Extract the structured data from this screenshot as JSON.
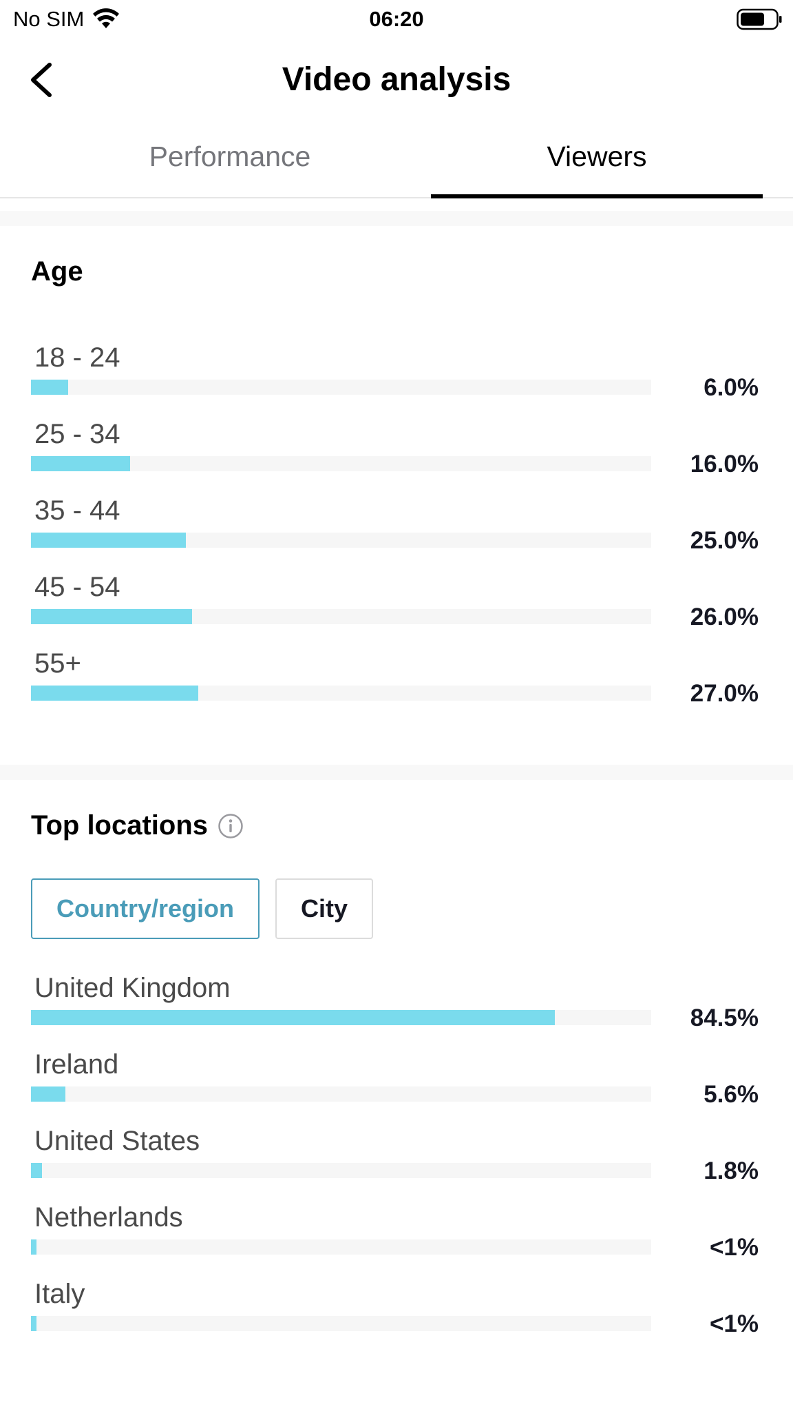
{
  "status_bar": {
    "carrier": "No SIM",
    "time": "06:20",
    "wifi_icon": "wifi-icon",
    "battery_icon": "battery-icon"
  },
  "nav": {
    "title": "Video analysis",
    "back_icon": "chevron-left-icon"
  },
  "tabs": [
    {
      "label": "Performance",
      "active": false
    },
    {
      "label": "Viewers",
      "active": true
    }
  ],
  "age": {
    "title": "Age",
    "rows": [
      {
        "label": "18 - 24",
        "value": "6.0%",
        "percent": 6.0
      },
      {
        "label": "25 - 34",
        "value": "16.0%",
        "percent": 16.0
      },
      {
        "label": "35 - 44",
        "value": "25.0%",
        "percent": 25.0
      },
      {
        "label": "45 - 54",
        "value": "26.0%",
        "percent": 26.0
      },
      {
        "label": "55+",
        "value": "27.0%",
        "percent": 27.0
      }
    ]
  },
  "locations": {
    "title": "Top locations",
    "info_icon": "info-icon",
    "filters": [
      {
        "label": "Country/region",
        "active": true
      },
      {
        "label": "City",
        "active": false
      }
    ],
    "rows": [
      {
        "label": "United Kingdom",
        "value": "84.5%",
        "percent": 84.5
      },
      {
        "label": "Ireland",
        "value": "5.6%",
        "percent": 5.6
      },
      {
        "label": "United States",
        "value": "1.8%",
        "percent": 1.8
      },
      {
        "label": "Netherlands",
        "value": "<1%",
        "percent": 0.9
      },
      {
        "label": "Italy",
        "value": "<1%",
        "percent": 0.9
      }
    ]
  },
  "colors": {
    "bar_fill": "#7adbed",
    "bar_track": "#f6f6f6",
    "accent": "#4a9cb8"
  }
}
